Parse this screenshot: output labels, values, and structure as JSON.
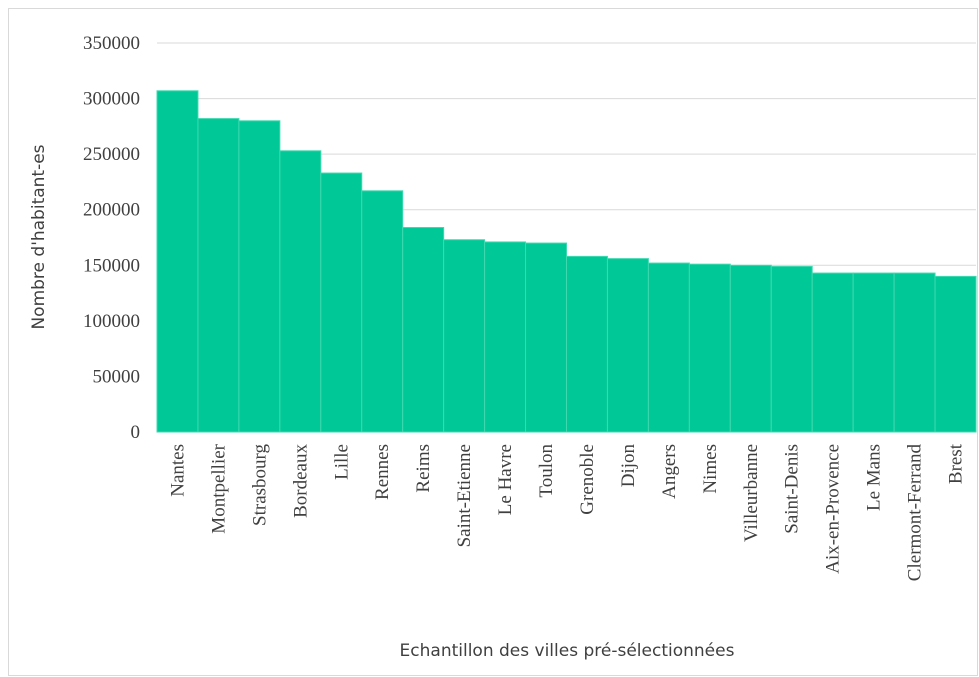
{
  "chart_data": {
    "type": "bar",
    "title": "",
    "xlabel": "Echantillon des villes pré-sélectionnées",
    "ylabel": "Nombre d'habitant-es",
    "ylim": [
      0,
      350000
    ],
    "y_ticks": [
      "0",
      "50000",
      "100000",
      "150000",
      "200000",
      "250000",
      "300000",
      "350000"
    ],
    "grid": true,
    "legend": "none",
    "bar_color": "#00c896",
    "categories": [
      "Nantes",
      "Montpellier",
      "Strasbourg",
      "Bordeaux",
      "Lille",
      "Rennes",
      "Reims",
      "Saint-Etienne",
      "Le Havre",
      "Toulon",
      "Grenoble",
      "Dijon",
      "Angers",
      "Nimes",
      "Villeurbanne",
      "Saint-Denis",
      "Aix-en-Provence",
      "Le Mans",
      "Clermont-Ferrand",
      "Brest"
    ],
    "values": [
      307000,
      282000,
      280000,
      253000,
      233000,
      217000,
      184000,
      173000,
      171000,
      170000,
      158000,
      156000,
      152000,
      151000,
      150000,
      149000,
      143000,
      143000,
      143000,
      140000
    ]
  }
}
